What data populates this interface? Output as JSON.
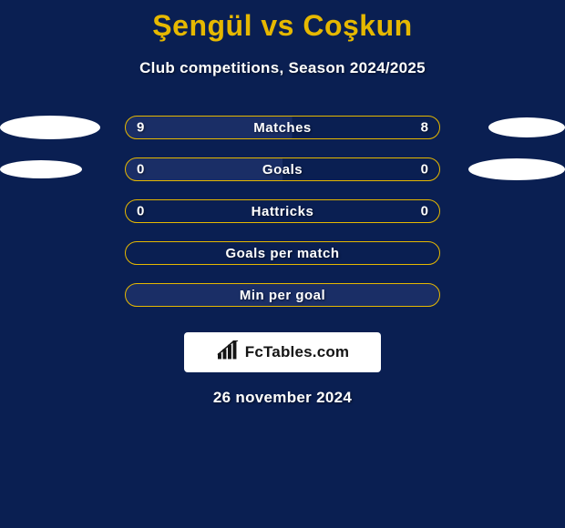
{
  "colors": {
    "background": "#0a1f52",
    "title": "#e6b800",
    "subtitle": "#ffffff",
    "subtitle_shadow": "rgba(0,0,0,0.5)",
    "ellipse_fill": "#ffffff",
    "pill_border": "#e6b800",
    "pill_fill_shaded": "#1a2e66",
    "pill_fill_plain": "#0a1f52",
    "stat_text": "#ffffff",
    "branding_bg": "#ffffff",
    "branding_text": "#141414",
    "date_text": "#ffffff",
    "matches_fill_bg": "#1a2e66"
  },
  "title_fontsize": 32,
  "subtitle_fontsize": 17,
  "pill_label_fontsize": 15,
  "header": {
    "title": "Şengül vs Coşkun",
    "subtitle": "Club competitions, Season 2024/2025"
  },
  "rows": [
    {
      "label": "Matches",
      "left_value": "9",
      "right_value": "8",
      "shaded": true,
      "fill_left_pct": 53,
      "show_values": true,
      "ellipses": {
        "show": true,
        "left_width": 110,
        "left_height": 26,
        "right_width": 84,
        "right_height": 22
      }
    },
    {
      "label": "Goals",
      "left_value": "0",
      "right_value": "0",
      "shaded": true,
      "fill_left_pct": 50,
      "show_values": true,
      "ellipses": {
        "show": true,
        "left_width": 90,
        "left_height": 20,
        "right_width": 106,
        "right_height": 24
      }
    },
    {
      "label": "Hattricks",
      "left_value": "0",
      "right_value": "0",
      "shaded": false,
      "fill_left_pct": 0,
      "show_values": true,
      "ellipses": {
        "show": false
      }
    },
    {
      "label": "Goals per match",
      "left_value": "",
      "right_value": "",
      "shaded": false,
      "fill_left_pct": 0,
      "show_values": false,
      "ellipses": {
        "show": false
      }
    },
    {
      "label": "Min per goal",
      "left_value": "",
      "right_value": "",
      "shaded": true,
      "fill_left_pct": 100,
      "show_values": false,
      "ellipses": {
        "show": false
      }
    }
  ],
  "branding": {
    "text": "FcTables.com"
  },
  "date": "26 november 2024"
}
